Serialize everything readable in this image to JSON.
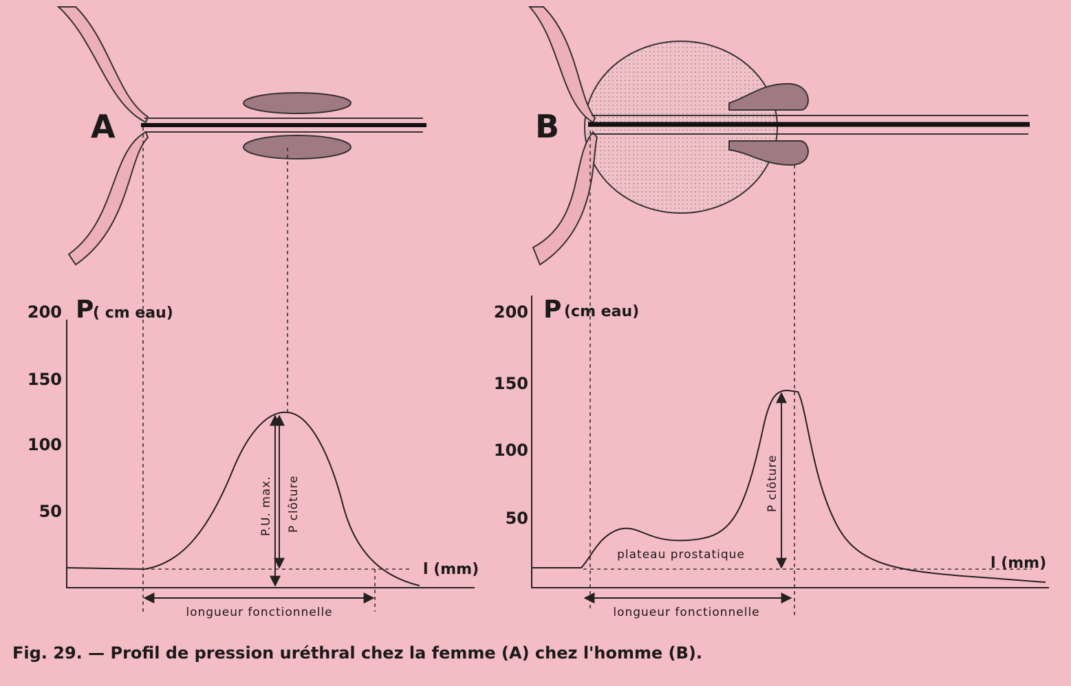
{
  "panels": [
    {
      "letter": "A",
      "y_axis_label": "P",
      "y_axis_unit": "( cm eau)",
      "ticks": [
        "200",
        "150",
        "100",
        "50"
      ],
      "x_axis_label": "l (mm)",
      "annotations": [
        "P.U. max.",
        "P clôture"
      ],
      "length_label": "longueur fonctionnelle"
    },
    {
      "letter": "B",
      "y_axis_label": "P",
      "y_axis_unit": "(cm eau)",
      "ticks": [
        "200",
        "150",
        "100",
        "50"
      ],
      "x_axis_label": "l (mm)",
      "annotations": [
        "P clôture",
        "plateau prostatique"
      ],
      "length_label": "longueur fonctionnelle"
    }
  ],
  "caption": "Fig. 29. — Profil de pression uréthral chez la femme (A) chez l'homme (B)."
}
